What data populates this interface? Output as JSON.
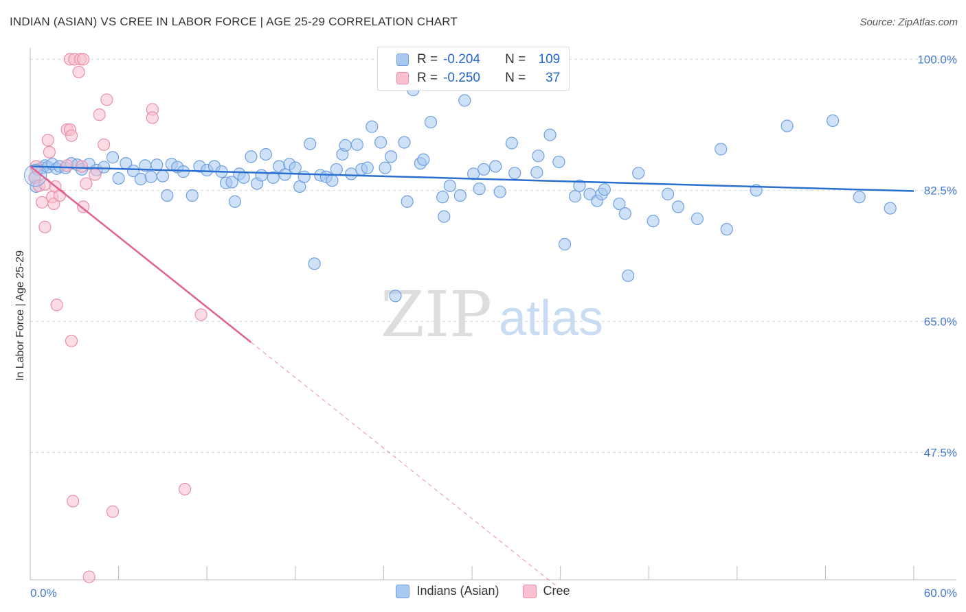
{
  "header": {
    "title": "INDIAN (ASIAN) VS CREE IN LABOR FORCE | AGE 25-29 CORRELATION CHART",
    "source": "Source: ZipAtlas.com"
  },
  "watermark": {
    "zip": "ZIP",
    "atlas": "atlas"
  },
  "legend": {
    "rows": [
      {
        "r_label": "R =",
        "r_value": "-0.204",
        "n_label": "N =",
        "n_value": "109",
        "color": "#a8c8f0",
        "border": "#6fa0e0"
      },
      {
        "r_label": "R =",
        "r_value": "-0.250",
        "n_label": "N =",
        "n_value": "37",
        "color": "#f8c0d0",
        "border": "#e890a8"
      }
    ]
  },
  "bottom_legend": {
    "series1": "Indians (Asian)",
    "series2": "Cree"
  },
  "chart_data": {
    "type": "scatter",
    "title": "INDIAN (ASIAN) VS CREE IN LABOR FORCE | AGE 25-29 CORRELATION CHART",
    "xlabel": "",
    "ylabel": "In Labor Force | Age 25-29",
    "xlim": [
      0,
      60
    ],
    "ylim": [
      30.5,
      101.5
    ],
    "x_tick_labels": [
      "0.0%",
      "60.0%"
    ],
    "y_tick_values": [
      100.0,
      82.5,
      65.0,
      47.5
    ],
    "y_tick_labels": [
      "100.0%",
      "82.5%",
      "65.0%",
      "47.5%"
    ],
    "grid": true,
    "series": [
      {
        "name": "Indians (Asian)",
        "color": "#a8c8f0",
        "stroke": "#6fa0e0",
        "trend": {
          "x0": 0,
          "y0": 85.7,
          "x1": 60,
          "y1": 82.4,
          "color": "#2a6fd0"
        },
        "points": [
          [
            0.3,
            84.2
          ],
          [
            0.4,
            83.0
          ],
          [
            0.5,
            85.3
          ],
          [
            0.8,
            85.5
          ],
          [
            1.0,
            85.8
          ],
          [
            1.2,
            85.6
          ],
          [
            1.5,
            86.0
          ],
          [
            1.8,
            85.4
          ],
          [
            2.0,
            85.7
          ],
          [
            2.4,
            85.5
          ],
          [
            2.8,
            86.1
          ],
          [
            3.2,
            85.9
          ],
          [
            3.5,
            85.3
          ],
          [
            4.0,
            86.0
          ],
          [
            4.5,
            85.2
          ],
          [
            5.0,
            85.6
          ],
          [
            5.6,
            86.9
          ],
          [
            6.0,
            84.1
          ],
          [
            6.5,
            86.1
          ],
          [
            7.0,
            85.1
          ],
          [
            7.5,
            84.0
          ],
          [
            7.8,
            85.8
          ],
          [
            8.2,
            84.3
          ],
          [
            8.6,
            85.9
          ],
          [
            9.0,
            84.4
          ],
          [
            9.3,
            81.8
          ],
          [
            9.6,
            86.0
          ],
          [
            10.0,
            85.6
          ],
          [
            10.4,
            85.0
          ],
          [
            11.0,
            81.8
          ],
          [
            11.5,
            85.7
          ],
          [
            12.0,
            85.2
          ],
          [
            12.5,
            85.7
          ],
          [
            13.0,
            85.0
          ],
          [
            13.3,
            83.5
          ],
          [
            13.7,
            83.6
          ],
          [
            13.9,
            81.0
          ],
          [
            14.2,
            84.7
          ],
          [
            14.5,
            84.2
          ],
          [
            15.0,
            87.0
          ],
          [
            15.4,
            83.4
          ],
          [
            15.7,
            84.5
          ],
          [
            16.0,
            87.3
          ],
          [
            16.5,
            84.2
          ],
          [
            16.9,
            85.7
          ],
          [
            17.3,
            84.6
          ],
          [
            17.6,
            86.0
          ],
          [
            18.0,
            85.5
          ],
          [
            18.3,
            83.0
          ],
          [
            18.6,
            84.3
          ],
          [
            19.0,
            88.7
          ],
          [
            19.3,
            72.7
          ],
          [
            19.7,
            84.5
          ],
          [
            20.1,
            84.3
          ],
          [
            20.5,
            83.8
          ],
          [
            20.8,
            85.3
          ],
          [
            21.2,
            87.3
          ],
          [
            21.4,
            88.5
          ],
          [
            21.8,
            84.7
          ],
          [
            22.2,
            88.6
          ],
          [
            22.5,
            85.3
          ],
          [
            22.9,
            85.5
          ],
          [
            23.2,
            91.0
          ],
          [
            23.8,
            88.9
          ],
          [
            24.1,
            85.5
          ],
          [
            24.5,
            87.0
          ],
          [
            24.8,
            68.4
          ],
          [
            25.4,
            88.9
          ],
          [
            25.6,
            81.0
          ],
          [
            26.0,
            95.9
          ],
          [
            26.5,
            86.1
          ],
          [
            26.7,
            86.6
          ],
          [
            27.2,
            91.6
          ],
          [
            28.0,
            81.6
          ],
          [
            28.1,
            79.0
          ],
          [
            28.5,
            83.1
          ],
          [
            29.2,
            81.8
          ],
          [
            29.5,
            94.5
          ],
          [
            30.1,
            84.7
          ],
          [
            30.5,
            82.7
          ],
          [
            30.8,
            85.3
          ],
          [
            31.6,
            85.7
          ],
          [
            31.9,
            82.3
          ],
          [
            32.7,
            88.8
          ],
          [
            32.9,
            84.8
          ],
          [
            34.4,
            84.9
          ],
          [
            34.5,
            87.1
          ],
          [
            35.3,
            89.9
          ],
          [
            35.9,
            86.3
          ],
          [
            36.3,
            75.3
          ],
          [
            37.0,
            81.7
          ],
          [
            37.3,
            83.1
          ],
          [
            38.0,
            82.0
          ],
          [
            38.5,
            81.1
          ],
          [
            38.8,
            82.0
          ],
          [
            39.0,
            82.6
          ],
          [
            40.0,
            80.7
          ],
          [
            40.4,
            79.4
          ],
          [
            40.6,
            71.1
          ],
          [
            41.3,
            84.8
          ],
          [
            42.3,
            78.4
          ],
          [
            43.3,
            82.0
          ],
          [
            44.0,
            80.3
          ],
          [
            45.3,
            78.7
          ],
          [
            46.9,
            88.0
          ],
          [
            47.3,
            77.3
          ],
          [
            49.3,
            82.5
          ],
          [
            51.4,
            91.1
          ],
          [
            54.5,
            91.8
          ],
          [
            56.3,
            81.6
          ],
          [
            58.4,
            80.1
          ]
        ]
      },
      {
        "name": "Cree",
        "color": "#f8c0d0",
        "stroke": "#e890a8",
        "trend": {
          "x0": 0,
          "y0": 85.7,
          "x1": 15.0,
          "y1": 62.2,
          "dash_to_x": 35.9,
          "dash_to_y": 29.4,
          "color": "#e06090"
        },
        "points": [
          [
            0.3,
            84.2
          ],
          [
            0.4,
            85.7
          ],
          [
            0.6,
            83.1
          ],
          [
            0.8,
            80.9
          ],
          [
            1.0,
            83.3
          ],
          [
            1.0,
            77.6
          ],
          [
            1.2,
            89.2
          ],
          [
            1.3,
            87.6
          ],
          [
            1.5,
            81.6
          ],
          [
            1.6,
            80.7
          ],
          [
            1.7,
            83.0
          ],
          [
            1.8,
            67.2
          ],
          [
            2.0,
            81.8
          ],
          [
            2.5,
            85.8
          ],
          [
            2.5,
            90.6
          ],
          [
            2.7,
            90.6
          ],
          [
            2.7,
            100.0
          ],
          [
            2.8,
            89.8
          ],
          [
            2.8,
            62.4
          ],
          [
            3.0,
            100.0
          ],
          [
            2.9,
            41.0
          ],
          [
            3.3,
            98.3
          ],
          [
            3.4,
            100.0
          ],
          [
            3.5,
            85.7
          ],
          [
            3.6,
            100.0
          ],
          [
            3.6,
            80.3
          ],
          [
            3.8,
            83.4
          ],
          [
            4.0,
            30.9
          ],
          [
            4.4,
            84.6
          ],
          [
            4.7,
            92.6
          ],
          [
            5.0,
            88.6
          ],
          [
            5.2,
            94.6
          ],
          [
            5.6,
            39.6
          ],
          [
            8.3,
            93.3
          ],
          [
            8.3,
            92.2
          ],
          [
            10.5,
            42.6
          ],
          [
            11.6,
            65.9
          ]
        ]
      }
    ]
  }
}
